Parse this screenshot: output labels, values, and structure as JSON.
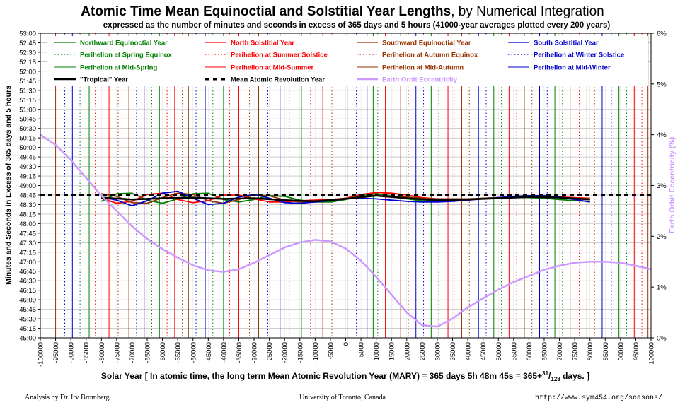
{
  "title_bold": "Atomic Time Mean Equinoctial and Solstitial Year Lengths",
  "title_rest": ", by Numerical Integration",
  "subtitle": "expressed as the number of minutes and seconds in excess of 365 days and 5 hours (41000-year averages plotted every 200 years)",
  "footer": {
    "left": "Analysis by Dr. Irv Bromberg",
    "center": "University of Toronto, Canada",
    "right": "http://www.sym454.org/seasons/"
  },
  "chart_data": {
    "type": "line",
    "xlabel_prefix": "Solar Year [ In atomic time, the long term Mean Atomic Revolution Year (MARY) = 365 days 5h 48m 45s = 365+",
    "xlabel_sup": "31",
    "xlabel_slash": "/",
    "xlabel_sub": "128",
    "xlabel_suffix": " days. ]",
    "ylabel": "Minutes and Seconds in Excess of 365 days and 5 hours",
    "y2label": "Earth Orbit Eccentricity (%)",
    "xlim": [
      -100000,
      100000
    ],
    "ylim_seconds": [
      2700,
      3180
    ],
    "y2lim": [
      0,
      6
    ],
    "grid": true,
    "legend_position": "top",
    "x_ticks": [
      -100000,
      -95000,
      -90000,
      -85000,
      -80000,
      -75000,
      -70000,
      -65000,
      -60000,
      -55000,
      -50000,
      -45000,
      -40000,
      -35000,
      -30000,
      -25000,
      -20000,
      -15000,
      -10000,
      -5000,
      0,
      5000,
      10000,
      15000,
      20000,
      25000,
      30000,
      35000,
      40000,
      45000,
      50000,
      55000,
      60000,
      65000,
      70000,
      75000,
      80000,
      85000,
      90000,
      95000,
      100000
    ],
    "y_ticks": [
      "45:00",
      "45:15",
      "45:30",
      "45:45",
      "46:00",
      "46:15",
      "46:30",
      "46:45",
      "47:00",
      "47:15",
      "47:30",
      "47:45",
      "48:00",
      "48:15",
      "48:30",
      "48:45",
      "49:00",
      "49:15",
      "49:30",
      "49:45",
      "50:00",
      "50:15",
      "50:30",
      "50:45",
      "51:00",
      "51:15",
      "51:30",
      "51:45",
      "52:00",
      "52:15",
      "52:30",
      "52:45",
      "53:00"
    ],
    "y2_ticks": [
      "0%",
      "1%",
      "2%",
      "3%",
      "4%",
      "5%",
      "6%"
    ],
    "series_colors": {
      "northward": "#008000",
      "north_solstitial": "#ff0000",
      "southward": "#993300",
      "south_solstitial": "#0000cc",
      "tropical": "#000000",
      "mary": "#000000",
      "eccentricity": "#cc99ff"
    },
    "legend": [
      {
        "label": "Northward Equinoctial Year",
        "color": "#008000",
        "style": "solid",
        "width": 1.2
      },
      {
        "label": "North Solstitial Year",
        "color": "#ff0000",
        "style": "solid",
        "width": 1.2
      },
      {
        "label": "Southward Equinoctial Year",
        "color": "#993300",
        "style": "solid",
        "width": 1.2
      },
      {
        "label": "South Solstitial Year",
        "color": "#0000cc",
        "style": "solid",
        "width": 1.2
      },
      {
        "label": "Perihelion at Spring Equinox",
        "color": "#008000",
        "style": "dotted",
        "width": 1.2
      },
      {
        "label": "Perihelion at Summer Solstice",
        "color": "#ff0000",
        "style": "dotted",
        "width": 1.2
      },
      {
        "label": "Perihelion at Autumn Equinox",
        "color": "#993300",
        "style": "dotted",
        "width": 1.2
      },
      {
        "label": "Perihelion at Winter Solstice",
        "color": "#0000cc",
        "style": "dotted",
        "width": 1.2
      },
      {
        "label": "Perihelion at Mid-Spring",
        "color": "#008000",
        "style": "solid",
        "width": 1
      },
      {
        "label": "Perihelion at Mid-Summer",
        "color": "#ff0000",
        "style": "solid",
        "width": 1
      },
      {
        "label": "Perihelion at Mid-Autumn",
        "color": "#993300",
        "style": "solid",
        "width": 1
      },
      {
        "label": "Perihelion at Mid-Winter",
        "color": "#0000cc",
        "style": "solid",
        "width": 1
      },
      {
        "label": "\"Tropical\" Year",
        "color": "#000000",
        "style": "solid",
        "width": 2.5
      },
      {
        "label": "Mean Atomic Revolution Year",
        "color": "#000000",
        "style": "dashed",
        "width": 3
      },
      {
        "label": "Earth Orbit Eccentricity",
        "color": "#cc99ff",
        "style": "solid",
        "width": 2.5
      }
    ],
    "perihelion_markers": [
      {
        "x": -95000,
        "color": "#993300",
        "style": "solid"
      },
      {
        "x": -92000,
        "color": "#0000cc",
        "style": "dotted"
      },
      {
        "x": -89500,
        "color": "#0000cc",
        "style": "solid"
      },
      {
        "x": -87000,
        "color": "#008000",
        "style": "dotted"
      },
      {
        "x": -84000,
        "color": "#008000",
        "style": "solid"
      },
      {
        "x": -82000,
        "color": "#ff0000",
        "style": "dotted"
      },
      {
        "x": -77500,
        "color": "#ff0000",
        "style": "solid"
      },
      {
        "x": -74500,
        "color": "#993300",
        "style": "dotted"
      },
      {
        "x": -71000,
        "color": "#993300",
        "style": "solid"
      },
      {
        "x": -68500,
        "color": "#0000cc",
        "style": "dotted"
      },
      {
        "x": -66000,
        "color": "#0000cc",
        "style": "solid"
      },
      {
        "x": -63500,
        "color": "#008000",
        "style": "dotted"
      },
      {
        "x": -61000,
        "color": "#008000",
        "style": "solid"
      },
      {
        "x": -58500,
        "color": "#ff0000",
        "style": "dotted"
      },
      {
        "x": -56000,
        "color": "#ff0000",
        "style": "solid"
      },
      {
        "x": -53500,
        "color": "#993300",
        "style": "dotted"
      },
      {
        "x": -51500,
        "color": "#993300",
        "style": "solid"
      },
      {
        "x": -49000,
        "color": "#0000cc",
        "style": "dotted"
      },
      {
        "x": -46000,
        "color": "#0000cc",
        "style": "solid"
      },
      {
        "x": -43500,
        "color": "#008000",
        "style": "dotted"
      },
      {
        "x": -40000,
        "color": "#008000",
        "style": "solid"
      },
      {
        "x": -38000,
        "color": "#ff0000",
        "style": "dotted"
      },
      {
        "x": -35000,
        "color": "#ff0000",
        "style": "solid"
      },
      {
        "x": -31500,
        "color": "#993300",
        "style": "dotted"
      },
      {
        "x": -28500,
        "color": "#993300",
        "style": "solid"
      },
      {
        "x": -25500,
        "color": "#0000cc",
        "style": "dotted"
      },
      {
        "x": -21500,
        "color": "#0000cc",
        "style": "solid"
      },
      {
        "x": -18500,
        "color": "#008000",
        "style": "dotted"
      },
      {
        "x": -14500,
        "color": "#008000",
        "style": "solid"
      },
      {
        "x": -11500,
        "color": "#ff0000",
        "style": "dotted"
      },
      {
        "x": -7500,
        "color": "#ff0000",
        "style": "solid"
      },
      {
        "x": -4500,
        "color": "#993300",
        "style": "dotted"
      },
      {
        "x": 500,
        "color": "#993300",
        "style": "solid"
      },
      {
        "x": 3500,
        "color": "#0000cc",
        "style": "dotted"
      },
      {
        "x": 7000,
        "color": "#0000cc",
        "style": "solid"
      },
      {
        "x": 9000,
        "color": "#008000",
        "style": "solid"
      },
      {
        "x": 10500,
        "color": "#008000",
        "style": "dotted"
      },
      {
        "x": 13000,
        "color": "#ff0000",
        "style": "solid"
      },
      {
        "x": 15500,
        "color": "#ff0000",
        "style": "dotted"
      },
      {
        "x": 18000,
        "color": "#993300",
        "style": "solid"
      },
      {
        "x": 20500,
        "color": "#993300",
        "style": "dotted"
      },
      {
        "x": 23000,
        "color": "#0000cc",
        "style": "solid"
      },
      {
        "x": 25500,
        "color": "#0000cc",
        "style": "dotted"
      },
      {
        "x": 28000,
        "color": "#008000",
        "style": "solid"
      },
      {
        "x": 30500,
        "color": "#008000",
        "style": "dotted"
      },
      {
        "x": 33500,
        "color": "#ff0000",
        "style": "solid"
      },
      {
        "x": 35500,
        "color": "#ff0000",
        "style": "dotted"
      },
      {
        "x": 38000,
        "color": "#993300",
        "style": "solid"
      },
      {
        "x": 40500,
        "color": "#993300",
        "style": "dotted"
      },
      {
        "x": 43500,
        "color": "#0000cc",
        "style": "solid"
      },
      {
        "x": 46000,
        "color": "#0000cc",
        "style": "dotted"
      },
      {
        "x": 48500,
        "color": "#008000",
        "style": "solid"
      },
      {
        "x": 51000,
        "color": "#008000",
        "style": "dotted"
      },
      {
        "x": 53500,
        "color": "#ff0000",
        "style": "solid"
      },
      {
        "x": 56000,
        "color": "#ff0000",
        "style": "dotted"
      },
      {
        "x": 58500,
        "color": "#993300",
        "style": "solid"
      },
      {
        "x": 61000,
        "color": "#993300",
        "style": "dotted"
      },
      {
        "x": 63500,
        "color": "#0000cc",
        "style": "solid"
      },
      {
        "x": 66000,
        "color": "#0000cc",
        "style": "dotted"
      },
      {
        "x": 68500,
        "color": "#008000",
        "style": "solid"
      },
      {
        "x": 71000,
        "color": "#008000",
        "style": "dotted"
      },
      {
        "x": 73500,
        "color": "#ff0000",
        "style": "solid"
      },
      {
        "x": 76500,
        "color": "#ff0000",
        "style": "dotted"
      },
      {
        "x": 79000,
        "color": "#993300",
        "style": "solid"
      },
      {
        "x": 81500,
        "color": "#993300",
        "style": "dotted"
      },
      {
        "x": 84000,
        "color": "#0000cc",
        "style": "solid"
      },
      {
        "x": 87000,
        "color": "#0000cc",
        "style": "dotted"
      },
      {
        "x": 89500,
        "color": "#008000",
        "style": "solid"
      },
      {
        "x": 92000,
        "color": "#008000",
        "style": "dotted"
      },
      {
        "x": 94500,
        "color": "#ff0000",
        "style": "solid"
      },
      {
        "x": 97000,
        "color": "#ff0000",
        "style": "dotted"
      },
      {
        "x": 99000,
        "color": "#993300",
        "style": "solid"
      }
    ],
    "mary_seconds": 2925,
    "series": [
      {
        "key": "northward",
        "color": "#008000",
        "width": 1.8,
        "x": [
          -80000,
          -75000,
          -70000,
          -65000,
          -60000,
          -55000,
          -50000,
          -45000,
          -40000,
          -35000,
          -30000,
          -25000,
          -20000,
          -15000,
          -10000,
          -5000,
          0,
          5000,
          10000,
          15000,
          20000,
          25000,
          30000,
          35000,
          40000,
          45000,
          50000,
          55000,
          60000,
          65000,
          70000,
          75000,
          80000
        ],
        "y_seconds": [
          2915,
          2927,
          2928,
          2917,
          2912,
          2919,
          2927,
          2928,
          2918,
          2914,
          2918,
          2924,
          2923,
          2917,
          2914,
          2914,
          2918,
          2924,
          2927,
          2924,
          2919,
          2916,
          2915,
          2916,
          2918,
          2920,
          2921,
          2921,
          2921,
          2920,
          2918,
          2916,
          2915
        ]
      },
      {
        "key": "north_solstitial",
        "color": "#ff0000",
        "width": 1.8,
        "x": [
          -80000,
          -75000,
          -70000,
          -65000,
          -60000,
          -55000,
          -50000,
          -45000,
          -40000,
          -35000,
          -30000,
          -25000,
          -20000,
          -15000,
          -10000,
          -5000,
          0,
          5000,
          10000,
          15000,
          20000,
          25000,
          30000,
          35000,
          40000,
          45000,
          50000,
          55000,
          60000,
          65000,
          70000,
          75000,
          80000
        ],
        "y_seconds": [
          2920,
          2912,
          2915,
          2926,
          2928,
          2918,
          2913,
          2916,
          2925,
          2925,
          2919,
          2914,
          2914,
          2916,
          2917,
          2918,
          2920,
          2926,
          2929,
          2928,
          2925,
          2921,
          2919,
          2918,
          2918,
          2919,
          2921,
          2922,
          2923,
          2923,
          2922,
          2921,
          2920
        ]
      },
      {
        "key": "southward",
        "color": "#993300",
        "width": 1.8,
        "x": [
          -80000,
          -75000,
          -70000,
          -65000,
          -60000,
          -55000,
          -50000,
          -45000,
          -40000,
          -35000,
          -30000,
          -25000,
          -20000,
          -15000,
          -10000,
          -5000,
          0,
          5000,
          10000,
          15000,
          20000,
          25000,
          30000,
          35000,
          40000,
          45000,
          50000,
          55000,
          60000,
          65000,
          70000,
          75000,
          80000
        ],
        "y_seconds": [
          2927,
          2923,
          2913,
          2912,
          2921,
          2928,
          2926,
          2916,
          2912,
          2918,
          2925,
          2924,
          2917,
          2914,
          2914,
          2917,
          2920,
          2923,
          2924,
          2923,
          2922,
          2920,
          2919,
          2919,
          2919,
          2920,
          2921,
          2922,
          2922,
          2922,
          2921,
          2920,
          2919
        ]
      },
      {
        "key": "south_solstitial",
        "color": "#0000cc",
        "width": 1.8,
        "x": [
          -80000,
          -75000,
          -70000,
          -65000,
          -60000,
          -55000,
          -50000,
          -45000,
          -40000,
          -35000,
          -30000,
          -25000,
          -20000,
          -15000,
          -10000,
          -5000,
          0,
          5000,
          10000,
          15000,
          20000,
          25000,
          30000,
          35000,
          40000,
          45000,
          50000,
          55000,
          60000,
          65000,
          70000,
          75000,
          80000
        ],
        "y_seconds": [
          2922,
          2917,
          2908,
          2916,
          2928,
          2931,
          2920,
          2910,
          2912,
          2922,
          2926,
          2920,
          2913,
          2912,
          2914,
          2916,
          2919,
          2920,
          2919,
          2917,
          2915,
          2914,
          2914,
          2915,
          2917,
          2919,
          2921,
          2923,
          2924,
          2924,
          2922,
          2918,
          2914
        ]
      },
      {
        "key": "tropical",
        "color": "#000000",
        "width": 2.5,
        "x": [
          -80000,
          -70000,
          -60000,
          -50000,
          -40000,
          -30000,
          -20000,
          -10000,
          0,
          10000,
          20000,
          30000,
          40000,
          50000,
          60000,
          70000,
          80000
        ],
        "y_seconds": [
          2921,
          2918,
          2920,
          2921,
          2919,
          2920,
          2917,
          2915,
          2919,
          2924,
          2920,
          2917,
          2918,
          2920,
          2922,
          2921,
          2918
        ]
      },
      {
        "key": "eccentricity",
        "color": "#cc99ff",
        "width": 2.5,
        "axis": "right",
        "x": [
          -100000,
          -95000,
          -90000,
          -85000,
          -80000,
          -75000,
          -70000,
          -65000,
          -60000,
          -55000,
          -50000,
          -45000,
          -40000,
          -35000,
          -30000,
          -25000,
          -20000,
          -15000,
          -10000,
          -5000,
          0,
          5000,
          10000,
          15000,
          20000,
          25000,
          30000,
          35000,
          40000,
          45000,
          50000,
          55000,
          60000,
          65000,
          70000,
          75000,
          80000,
          85000,
          90000,
          95000,
          100000
        ],
        "y_percent": [
          4.0,
          3.8,
          3.5,
          3.15,
          2.8,
          2.5,
          2.2,
          1.95,
          1.75,
          1.58,
          1.43,
          1.33,
          1.3,
          1.35,
          1.48,
          1.63,
          1.78,
          1.88,
          1.93,
          1.9,
          1.76,
          1.52,
          1.2,
          0.85,
          0.5,
          0.25,
          0.22,
          0.38,
          0.6,
          0.78,
          0.95,
          1.1,
          1.22,
          1.34,
          1.42,
          1.48,
          1.5,
          1.5,
          1.48,
          1.42,
          1.35
        ]
      }
    ]
  }
}
